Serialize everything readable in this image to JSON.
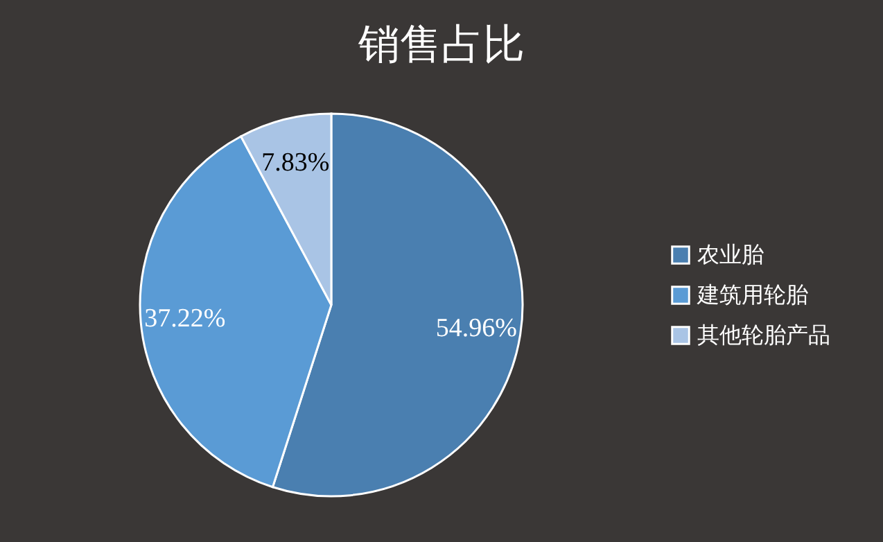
{
  "chart_data": {
    "type": "pie",
    "title": "销售占比",
    "categories": [
      "农业胎",
      "建筑用轮胎",
      "其他轮胎产品"
    ],
    "values": [
      54.96,
      37.22,
      7.83
    ],
    "colors": [
      "#4a7fb0",
      "#5a9bd5",
      "#a9c4e5"
    ],
    "value_labels": [
      "54.96%",
      "37.22%",
      "7.83%"
    ],
    "legend": "right"
  }
}
